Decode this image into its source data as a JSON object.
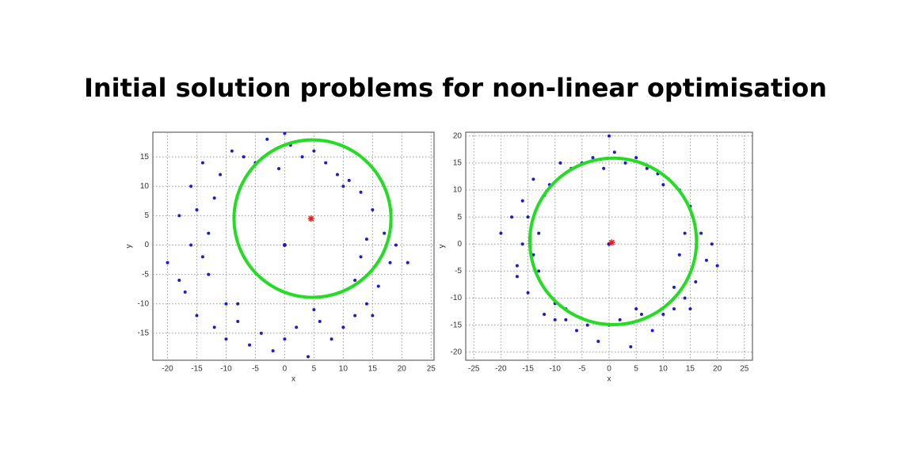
{
  "title": "Initial solution problems for non-linear optimisation",
  "chart_data": [
    {
      "type": "scatter",
      "xlabel": "x",
      "ylabel": "y",
      "xlim": [
        -22.5,
        25.5
      ],
      "ylim": [
        -19.6,
        19.2
      ],
      "xticks": [
        -20,
        -15,
        -10,
        -5,
        0,
        5,
        10,
        15,
        20,
        25
      ],
      "yticks": [
        -15,
        -10,
        -5,
        0,
        5,
        10,
        15
      ],
      "grid": true,
      "series": [
        {
          "color": "#1a1ad0",
          "x": [
            -20,
            -18,
            -17,
            -16,
            -15,
            -14,
            -13,
            -13,
            -12,
            -11,
            -10,
            -9,
            -8,
            -7,
            -6,
            -5,
            -4,
            -3,
            -2,
            -1,
            0,
            1,
            2,
            3,
            4,
            5,
            6,
            7,
            8,
            9,
            10,
            11,
            12,
            13,
            14,
            15,
            16,
            17,
            18,
            19,
            21,
            14,
            13,
            -14,
            -16,
            -18,
            -12,
            -10,
            10,
            12,
            -15,
            -8,
            5,
            15,
            0
          ],
          "y": [
            -3,
            5,
            -8,
            10,
            -12,
            14,
            2,
            -5,
            -14,
            12,
            -16,
            16,
            -10,
            15,
            -17,
            14,
            -15,
            18,
            -18,
            13,
            -16,
            17,
            -14,
            15,
            -19,
            16,
            -13,
            14,
            -16,
            12,
            -14,
            11,
            -12,
            9,
            -10,
            6,
            -7,
            2,
            -3,
            0,
            -3,
            1,
            -2,
            -2,
            0,
            -6,
            8,
            -10,
            10,
            -6,
            6,
            -13,
            -11,
            -12,
            19
          ]
        }
      ],
      "fit_circle": {
        "color": "#22dd22",
        "center": [
          4.75,
          4.5
        ],
        "radius": 13.4
      },
      "estimate": {
        "color": "#e02020",
        "x": 4.5,
        "y": 4.5
      },
      "origin": {
        "color": "#1a1ad0",
        "x": 0,
        "y": 0
      }
    },
    {
      "type": "scatter",
      "xlabel": "x",
      "ylabel": "y",
      "xlim": [
        -26.5,
        26.5
      ],
      "ylim": [
        -21.5,
        20.7
      ],
      "xticks": [
        -25,
        -20,
        -15,
        -10,
        -5,
        0,
        5,
        10,
        15,
        20,
        25
      ],
      "yticks": [
        -20,
        -15,
        -10,
        -5,
        0,
        5,
        10,
        15,
        20
      ],
      "grid": true,
      "series": [
        {
          "color": "#1a1ad0",
          "x": [
            -20,
            -18,
            -17,
            -16,
            -15,
            -14,
            -13,
            -13,
            -12,
            -11,
            -10,
            -9,
            -8,
            -7,
            -6,
            -5,
            -4,
            -3,
            -2,
            -1,
            0,
            1,
            2,
            3,
            4,
            5,
            6,
            7,
            8,
            9,
            10,
            11,
            12,
            13,
            14,
            15,
            16,
            17,
            18,
            19,
            20,
            14,
            13,
            -14,
            -16,
            -17,
            -12,
            -10,
            10,
            12,
            -15,
            -8,
            5,
            15,
            0
          ],
          "y": [
            2,
            5,
            -6,
            8,
            -9,
            12,
            2,
            -5,
            -13,
            11,
            -14,
            15,
            -12,
            14,
            -16,
            15,
            -15,
            16,
            -18,
            14,
            -15,
            17,
            -14,
            15,
            -19,
            16,
            -13,
            14,
            -16,
            13,
            -13,
            12,
            -12,
            10,
            -10,
            7,
            -7,
            2,
            -3,
            0,
            -4,
            2,
            -2,
            -2,
            0,
            -4,
            9,
            -11,
            11,
            -8,
            5,
            -14,
            -12,
            -12,
            20
          ]
        }
      ],
      "fit_circle": {
        "color": "#22dd22",
        "center": [
          0.75,
          0.5
        ],
        "radius": 15.4
      },
      "estimate": {
        "color": "#e02020",
        "x": 0.5,
        "y": 0.3
      },
      "origin": {
        "color": "#1a1ad0",
        "x": 0,
        "y": 0
      }
    }
  ]
}
